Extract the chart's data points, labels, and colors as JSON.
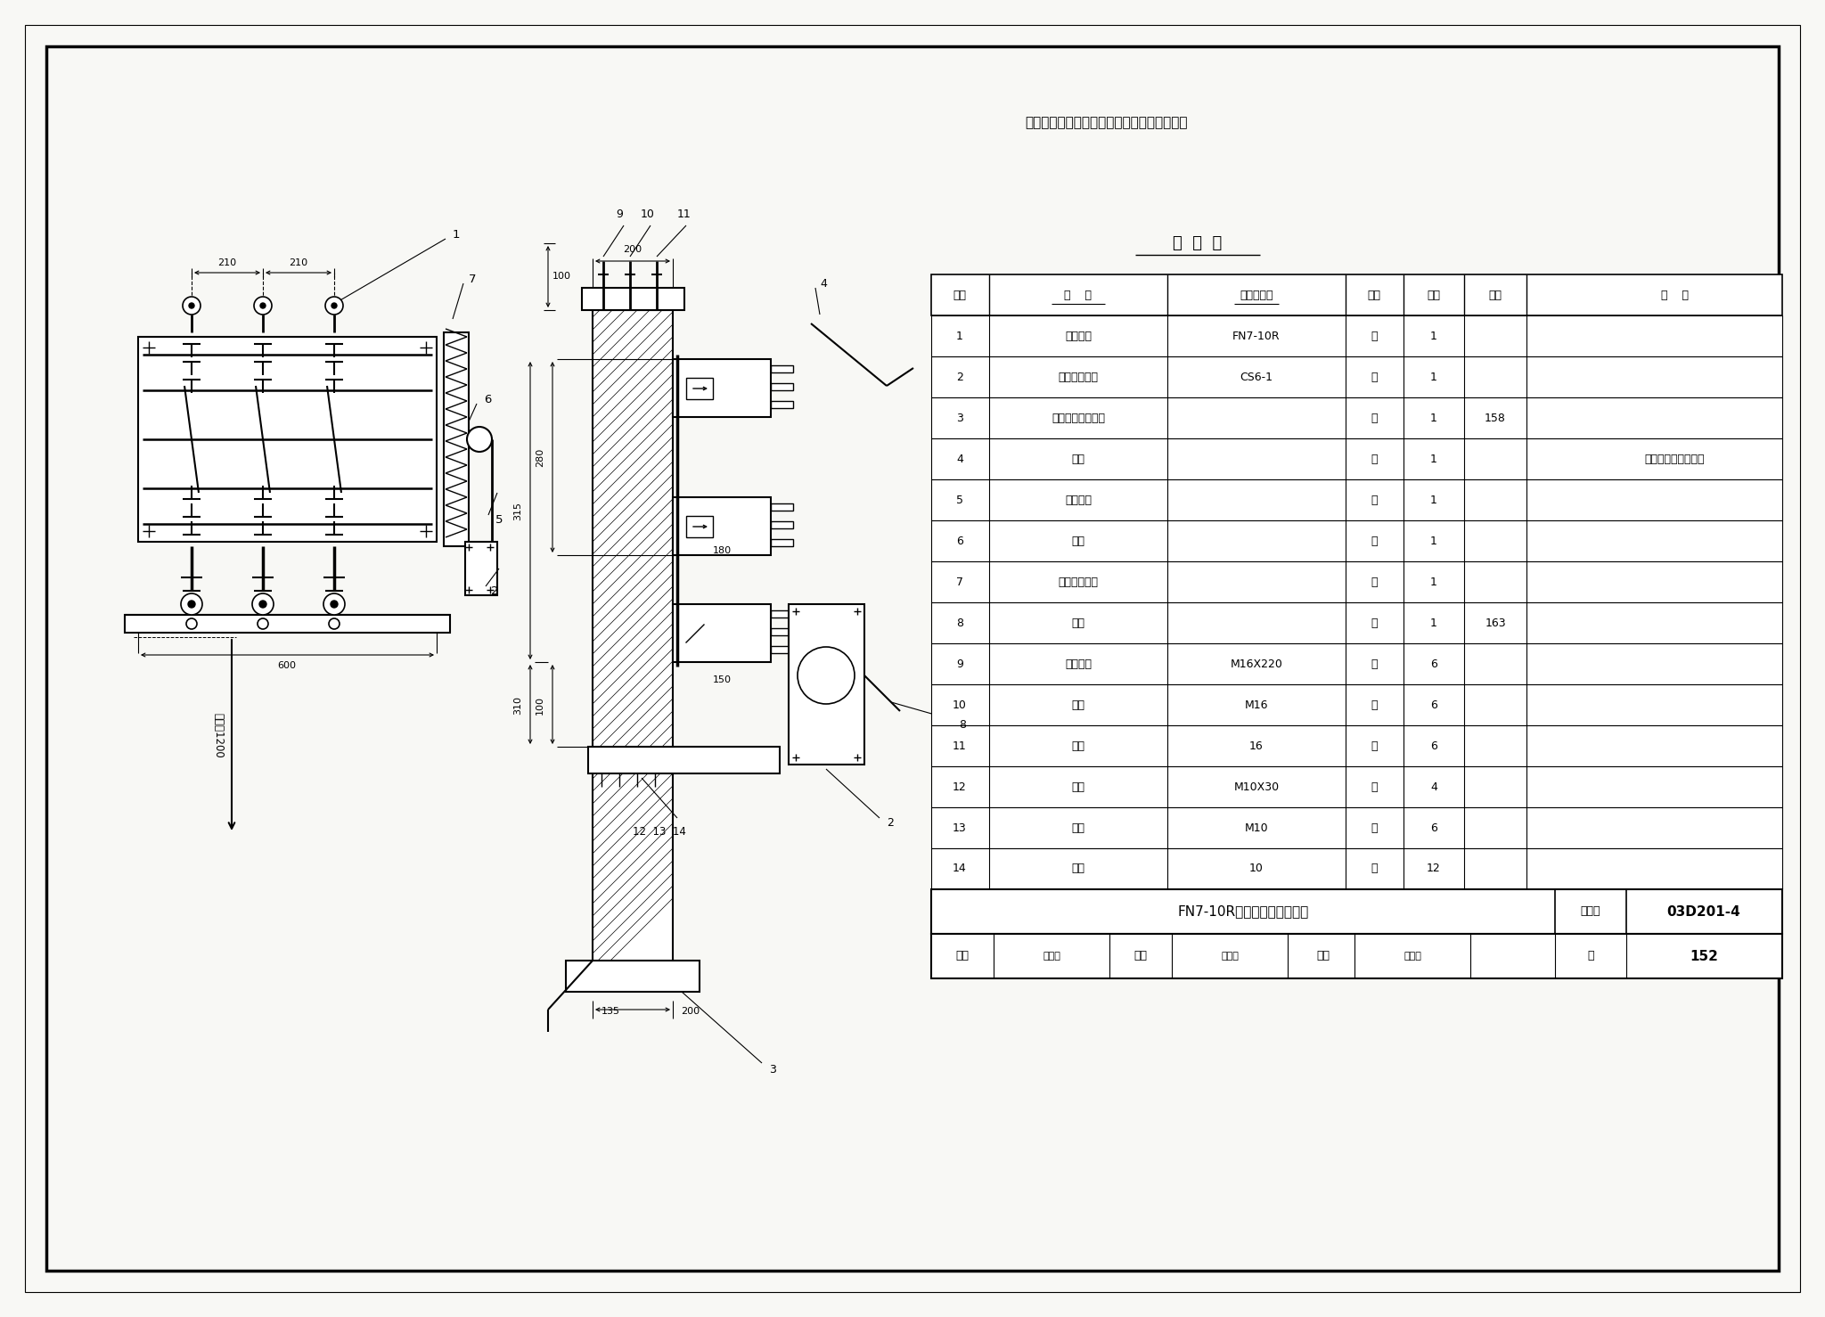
{
  "bg_color": "#ffffff",
  "paper_bg": "#f8f8f5",
  "border_color": "#000000",
  "title_note": "说明：操动机构也可安装在负荷开关的右侧。",
  "table_title": "明  细  表",
  "table_headers": [
    "序号",
    "名    称",
    "型号及规格",
    "单位",
    "数量",
    "页次",
    "备    注"
  ],
  "table_rows": [
    [
      "1",
      "负荷开关",
      "FN7-10R",
      "台",
      "1",
      "",
      ""
    ],
    [
      "2",
      "手力操动机构",
      "CS6-1",
      "台",
      "1",
      "",
      ""
    ],
    [
      "3",
      "操动机构安装支架",
      "",
      "个",
      "1",
      "158",
      ""
    ],
    [
      "4",
      "拉杆",
      "",
      "根",
      "1",
      "",
      "长度由工程设计决定"
    ],
    [
      "5",
      "焊接钢管",
      "",
      "根",
      "1",
      "",
      ""
    ],
    [
      "6",
      "转轴",
      "",
      "根",
      "1",
      "",
      ""
    ],
    [
      "7",
      "弹簧储能机构",
      "",
      "个",
      "1",
      "",
      ""
    ],
    [
      "8",
      "螺杆",
      "",
      "个",
      "1",
      "163",
      ""
    ],
    [
      "9",
      "开尾螺栓",
      "M16X220",
      "个",
      "6",
      "",
      ""
    ],
    [
      "10",
      "螺母",
      "M16",
      "个",
      "6",
      "",
      ""
    ],
    [
      "11",
      "垫圈",
      "16",
      "个",
      "6",
      "",
      ""
    ],
    [
      "12",
      "螺栓",
      "M10X30",
      "个",
      "4",
      "",
      ""
    ],
    [
      "13",
      "螺母",
      "M10",
      "个",
      "6",
      "",
      ""
    ],
    [
      "14",
      "垫圈",
      "10",
      "个",
      "12",
      "",
      ""
    ]
  ],
  "footer_left": "FN7-10R负荷开关在墙上安装",
  "footer_atlas_label": "图集号",
  "footer_atlas_val": "03D201-4",
  "footer_page_label": "页",
  "footer_page_val": "152",
  "dim_210": "210",
  "dim_210b": "210",
  "dim_600": "600",
  "dim_1200": "距地面1200",
  "dim_100a": "100",
  "dim_200": "200",
  "dim_280": "280",
  "dim_315": "315",
  "dim_180": "180",
  "dim_150": "150",
  "dim_100b": "100",
  "dim_310": "310",
  "dim_135": "135",
  "dim_200b": "200"
}
